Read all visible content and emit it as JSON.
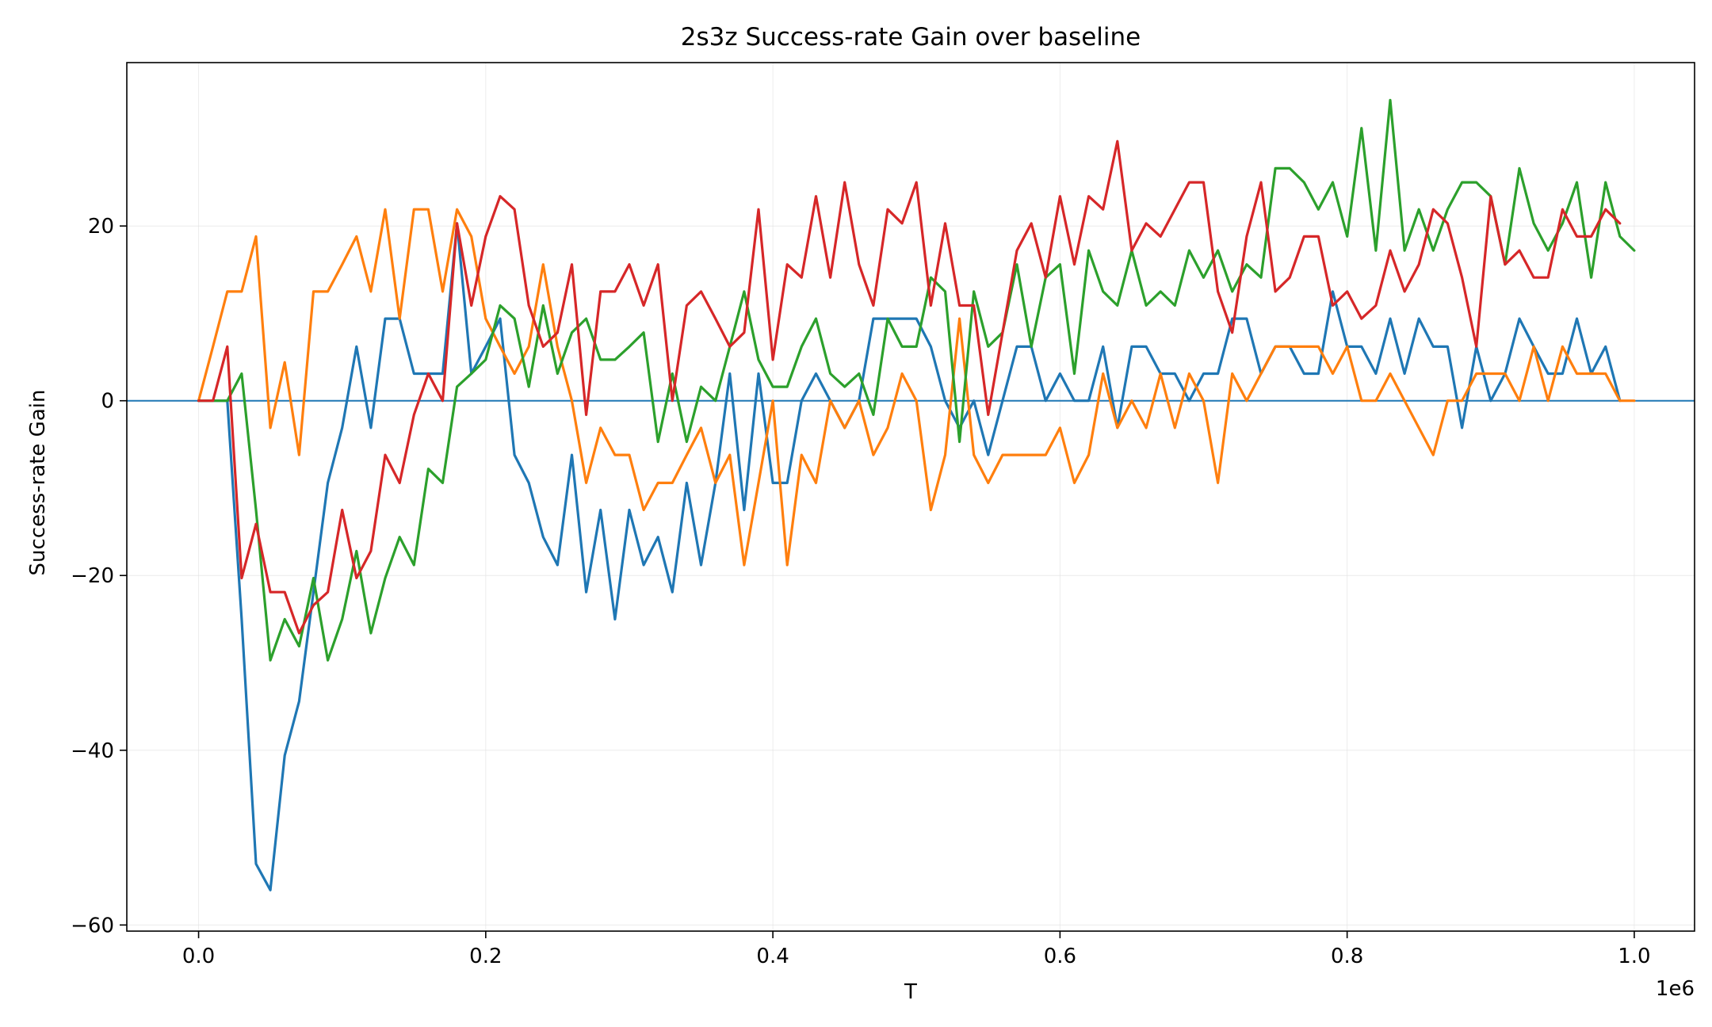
{
  "chart_data": {
    "type": "line",
    "title": "2s3z Success-rate Gain over baseline",
    "xlabel": "T",
    "ylabel": "Success-rate Gain",
    "x_offset_text": "1e6",
    "xlim": [
      -0.05,
      1.042
    ],
    "ylim": [
      -60.7,
      38.7
    ],
    "xticks": [
      0.0,
      0.2,
      0.4,
      0.6,
      0.8,
      1.0
    ],
    "xtick_labels": [
      "0.0",
      "0.2",
      "0.4",
      "0.6",
      "0.8",
      "1.0"
    ],
    "yticks": [
      -60,
      -40,
      -20,
      0,
      20
    ],
    "ytick_labels": [
      "−60",
      "−40",
      "−20",
      "0",
      "20"
    ],
    "grid": true,
    "baseline": {
      "y": 0,
      "color": "#1f77b4"
    },
    "x_start": 0.0,
    "x_step": 0.01,
    "series": [
      {
        "color": "#1f77b4",
        "values": [
          0,
          0,
          0,
          -25,
          -53,
          -56,
          -40.6,
          -34.4,
          -21.9,
          -9.4,
          -3.1,
          6.2,
          -3.1,
          9.4,
          9.4,
          3.1,
          3.1,
          3.1,
          20.3,
          3.1,
          6.2,
          9.4,
          -6.2,
          -9.4,
          -15.6,
          -18.8,
          -6.2,
          -21.9,
          -12.5,
          -25,
          -12.5,
          -18.8,
          -15.6,
          -21.9,
          -9.4,
          -18.8,
          -9.4,
          3.1,
          -12.5,
          3.1,
          -9.4,
          -9.4,
          0,
          3.1,
          0,
          -3.1,
          0,
          9.4,
          9.4,
          9.4,
          9.4,
          6.2,
          0,
          -3.1,
          0,
          -6.2,
          0,
          6.2,
          6.2,
          0,
          3.1,
          0,
          0,
          6.2,
          -3.1,
          6.2,
          6.2,
          3.1,
          3.1,
          0,
          3.1,
          3.1,
          9.4,
          9.4,
          3.1,
          6.2,
          6.2,
          3.1,
          3.1,
          12.5,
          6.2,
          6.2,
          3.1,
          9.4,
          3.1,
          9.4,
          6.2,
          6.2,
          -3.1,
          6.2,
          0,
          3.1,
          9.4,
          6.2,
          3.1,
          3.1,
          9.4,
          3.1,
          6.2,
          0
        ]
      },
      {
        "color": "#ff7f0e",
        "values": [
          0,
          6.2,
          12.5,
          12.5,
          18.8,
          -3.1,
          4.4,
          -6.2,
          12.5,
          12.5,
          15.6,
          18.8,
          12.5,
          21.9,
          9.4,
          21.9,
          21.9,
          12.5,
          21.9,
          18.8,
          9.4,
          6.2,
          3.1,
          6.2,
          15.6,
          6.2,
          0,
          -9.4,
          -3.1,
          -6.2,
          -6.2,
          -12.5,
          -9.4,
          -9.4,
          -6.2,
          -3.1,
          -9.4,
          -6.2,
          -18.8,
          -9.4,
          0,
          -18.8,
          -6.2,
          -9.4,
          0,
          -3.1,
          0,
          -6.2,
          -3.1,
          3.1,
          0,
          -12.5,
          -6.2,
          9.4,
          -6.2,
          -9.4,
          -6.2,
          -6.2,
          -6.2,
          -6.2,
          -3.1,
          -9.4,
          -6.2,
          3.1,
          -3.1,
          0,
          -3.1,
          3.1,
          -3.1,
          3.1,
          0,
          -9.4,
          3.1,
          0,
          3.1,
          6.2,
          6.2,
          6.2,
          6.2,
          3.1,
          6.2,
          0,
          0,
          3.1,
          0,
          -3.1,
          -6.2,
          0,
          0,
          3.1,
          3.1,
          3.1,
          0,
          6.2,
          0,
          6.2,
          3.1,
          3.1,
          3.1,
          0,
          0
        ]
      },
      {
        "color": "#2ca02c",
        "values": [
          0,
          0,
          0,
          3.1,
          -12.5,
          -29.7,
          -25,
          -28.1,
          -20.3,
          -29.7,
          -25,
          -17.2,
          -26.6,
          -20.3,
          -15.6,
          -18.8,
          -7.8,
          -9.4,
          1.6,
          3.1,
          4.7,
          10.9,
          9.4,
          1.6,
          10.9,
          3.1,
          7.8,
          9.4,
          4.7,
          4.7,
          6.2,
          7.8,
          -4.7,
          3.1,
          -4.7,
          1.6,
          0,
          6.2,
          12.5,
          4.7,
          1.6,
          1.6,
          6.2,
          9.4,
          3.1,
          1.6,
          3.1,
          -1.6,
          9.4,
          6.2,
          6.2,
          14.1,
          12.5,
          -4.7,
          12.5,
          6.2,
          7.8,
          15.6,
          6.2,
          14.1,
          15.6,
          3.1,
          17.2,
          12.5,
          10.9,
          17.2,
          10.9,
          12.5,
          10.9,
          17.2,
          14.1,
          17.2,
          12.5,
          15.6,
          14.1,
          26.6,
          26.6,
          25,
          21.9,
          25,
          18.8,
          31.2,
          17.2,
          34.4,
          17.2,
          21.9,
          17.2,
          21.9,
          25,
          25,
          23.4,
          15.6,
          26.6,
          20.3,
          17.2,
          20.3,
          25,
          14.1,
          25,
          18.8,
          17.2
        ]
      },
      {
        "color": "#d62728",
        "values": [
          0,
          0,
          6.2,
          -20.3,
          -14.1,
          -21.9,
          -21.9,
          -26.6,
          -23.4,
          -21.9,
          -12.5,
          -20.3,
          -17.2,
          -6.2,
          -9.4,
          -1.6,
          3.1,
          0,
          20.3,
          10.9,
          18.8,
          23.4,
          21.9,
          10.9,
          6.2,
          7.8,
          15.6,
          -1.6,
          12.5,
          12.5,
          15.6,
          10.9,
          15.6,
          0,
          10.9,
          12.5,
          9.4,
          6.2,
          7.8,
          21.9,
          4.7,
          15.6,
          14.1,
          23.4,
          14.1,
          25,
          15.6,
          10.9,
          21.9,
          20.3,
          25,
          10.9,
          20.3,
          10.9,
          10.9,
          -1.6,
          7.8,
          17.2,
          20.3,
          14.1,
          23.4,
          15.6,
          23.4,
          21.9,
          29.7,
          17.2,
          20.3,
          18.8,
          21.9,
          25,
          25,
          12.5,
          7.8,
          18.8,
          25,
          12.5,
          14.1,
          18.8,
          18.8,
          10.9,
          12.5,
          9.4,
          10.9,
          17.2,
          12.5,
          15.6,
          21.9,
          20.3,
          14.1,
          6.2,
          23.4,
          15.6,
          17.2,
          14.1,
          14.1,
          21.9,
          18.8,
          18.8,
          21.9,
          20.3
        ]
      }
    ]
  }
}
